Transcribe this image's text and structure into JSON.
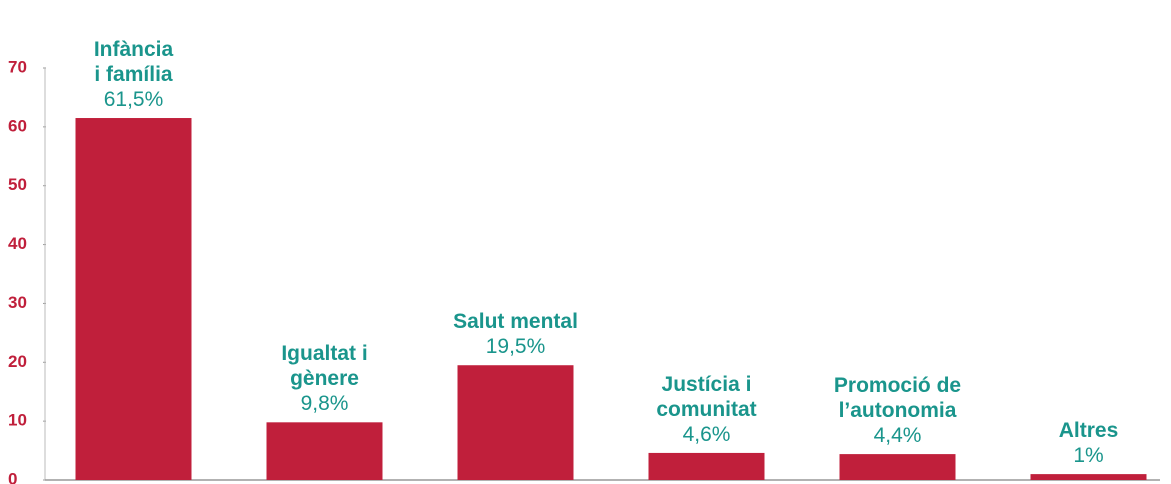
{
  "chart_data": {
    "type": "bar",
    "categories": [
      "Infància\ni família",
      "Igualtat i\ngènere",
      "Salut mental",
      "Justícia i\ncomunitat",
      "Promoció de\nl’autonomia",
      "Altres"
    ],
    "values": [
      61.5,
      9.8,
      19.5,
      4.6,
      4.4,
      1
    ],
    "value_labels": [
      "61,5%",
      "9,8%",
      "19,5%",
      "4,6%",
      "4,4%",
      "1%"
    ],
    "color": "#c01f3b",
    "ylim": [
      0,
      70
    ],
    "yticks": [
      0,
      10,
      20,
      30,
      40,
      50,
      60,
      70
    ]
  }
}
